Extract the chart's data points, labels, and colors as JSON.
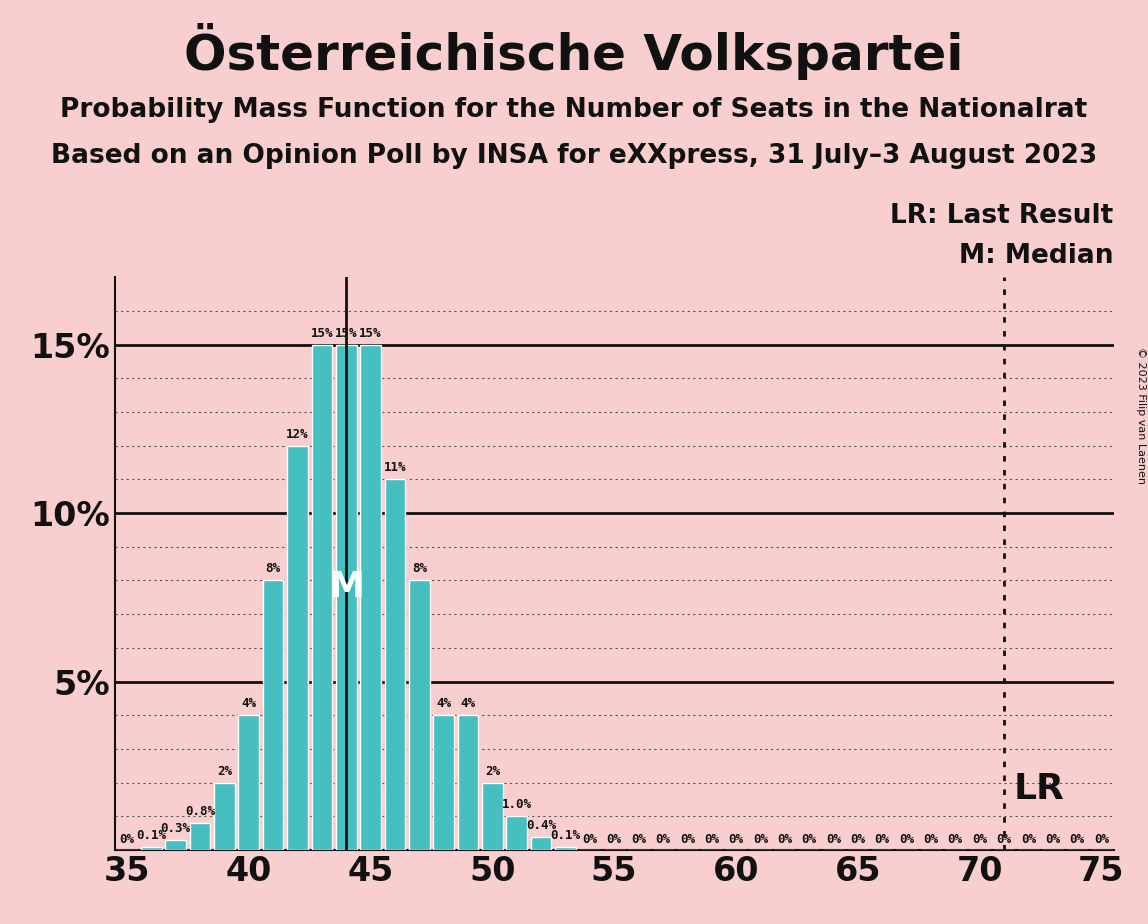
{
  "title": "Österreichische Volkspartei",
  "subtitle1": "Probability Mass Function for the Number of Seats in the Nationalrat",
  "subtitle2": "Based on an Opinion Poll by INSA for eXXpress, 31 July–3 August 2023",
  "copyright": "© 2023 Filip van Laenen",
  "background_color": "#f9cece",
  "bar_color": "#45bfbf",
  "bar_edge_color": "#ffffff",
  "seats": [
    35,
    36,
    37,
    38,
    39,
    40,
    41,
    42,
    43,
    44,
    45,
    46,
    47,
    48,
    49,
    50,
    51,
    52,
    53,
    54,
    55,
    56,
    57,
    58,
    59,
    60,
    61,
    62,
    63,
    64,
    65,
    66,
    67,
    68,
    69,
    70,
    71,
    72,
    73,
    74,
    75
  ],
  "probabilities": [
    0.0,
    0.1,
    0.3,
    0.8,
    2.0,
    4.0,
    8.0,
    12.0,
    15.0,
    15.0,
    15.0,
    11.0,
    8.0,
    4.0,
    4.0,
    2.0,
    1.0,
    0.4,
    0.1,
    0.0,
    0.0,
    0.0,
    0.0,
    0.0,
    0.0,
    0.0,
    0.0,
    0.0,
    0.0,
    0.0,
    0.0,
    0.0,
    0.0,
    0.0,
    0.0,
    0.0,
    0.0,
    0.0,
    0.0,
    0.0,
    0.0
  ],
  "bar_labels": [
    "0%",
    "0.1%",
    "0.3%",
    "0.8%",
    "2%",
    "4%",
    "8%",
    "12%",
    "15%",
    "15%",
    "15%",
    "11%",
    "8%",
    "4%",
    "4%",
    "2%",
    "1.0%",
    "0.4%",
    "0.1%",
    "0%",
    "0%",
    "0%",
    "0%",
    "0%",
    "0%",
    "0%",
    "0%",
    "0%",
    "0%",
    "0%",
    "0%",
    "0%",
    "0%",
    "0%",
    "0%",
    "0%",
    "0%",
    "0%",
    "0%",
    "0%",
    "0%"
  ],
  "median_seat": 44,
  "last_result_seat": 71,
  "xlim": [
    34.5,
    75.5
  ],
  "ylim": [
    0,
    17
  ],
  "yticks": [
    0,
    5,
    10,
    15
  ],
  "ytick_labels": [
    "",
    "5%",
    "10%",
    "15%"
  ],
  "xticks": [
    35,
    40,
    45,
    50,
    55,
    60,
    65,
    70,
    75
  ],
  "lr_label": "LR",
  "median_label": "M",
  "lr_legend": "LR: Last Result",
  "median_legend": "M: Median",
  "title_fontsize": 36,
  "subtitle_fontsize": 19,
  "label_fontsize": 9,
  "axis_fontsize": 24,
  "legend_fontsize": 19,
  "annotation_color": "#111111",
  "line_color": "#111111",
  "median_text_color": "#ffffff",
  "dotted_grid_color": "#555555",
  "solid_line_color": "#111111"
}
